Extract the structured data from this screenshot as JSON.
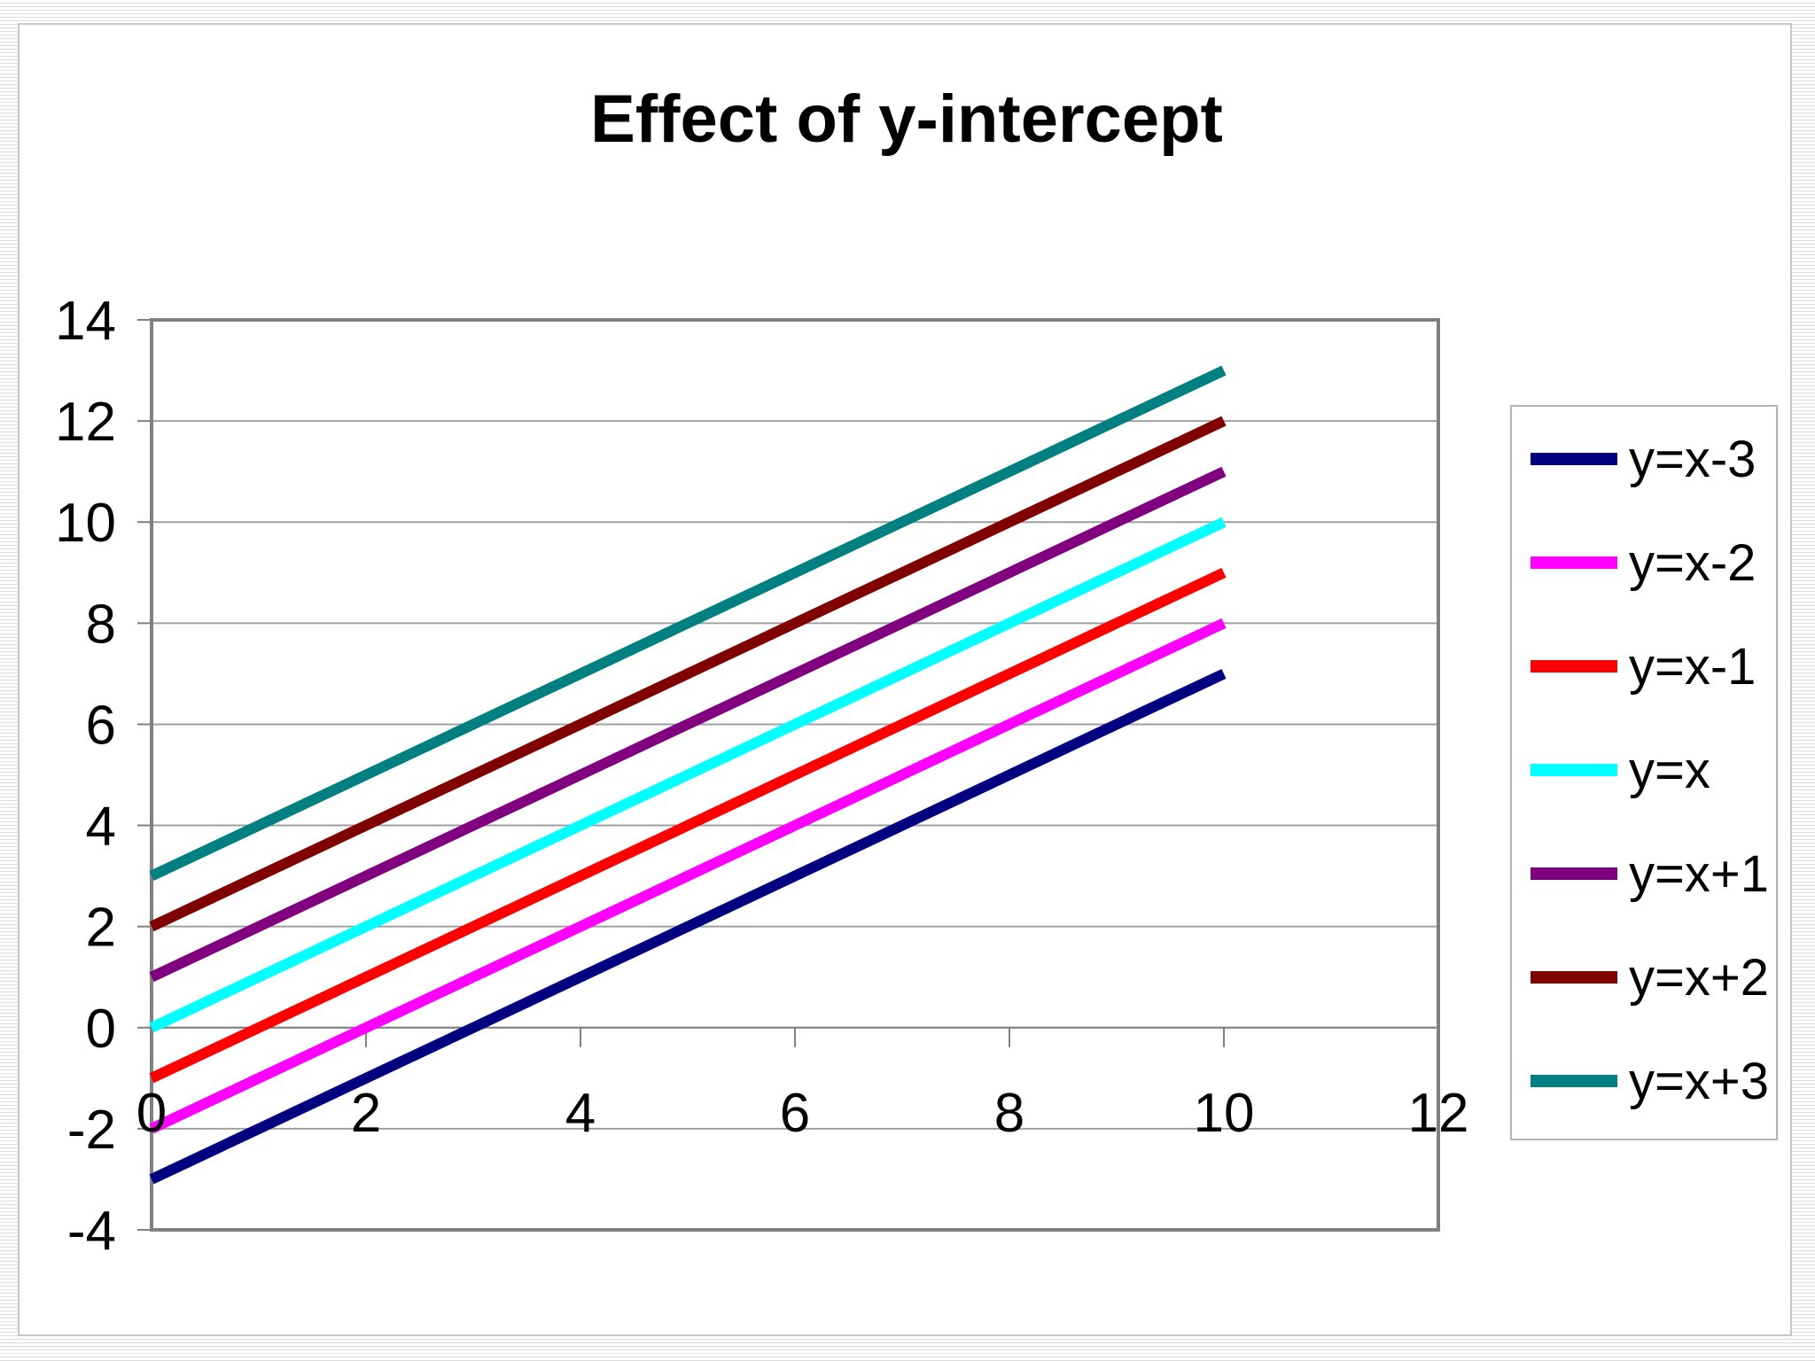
{
  "chart_data": {
    "type": "line",
    "title": "Effect of y-intercept",
    "xlabel": "",
    "ylabel": "",
    "xlim": [
      0,
      12
    ],
    "ylim": [
      -4,
      14
    ],
    "x_ticks": [
      0,
      2,
      4,
      6,
      8,
      10,
      12
    ],
    "y_ticks": [
      -4,
      -2,
      0,
      2,
      4,
      6,
      8,
      10,
      12,
      14
    ],
    "grid": "horizontal",
    "legend_position": "right",
    "x": [
      0,
      1,
      2,
      3,
      4,
      5,
      6,
      7,
      8,
      9,
      10
    ],
    "series": [
      {
        "name": "y=x-3",
        "color": "#000080",
        "values": [
          -3,
          -2,
          -1,
          0,
          1,
          2,
          3,
          4,
          5,
          6,
          7
        ]
      },
      {
        "name": "y=x-2",
        "color": "#FF00FF",
        "values": [
          -2,
          -1,
          0,
          1,
          2,
          3,
          4,
          5,
          6,
          7,
          8
        ]
      },
      {
        "name": "y=x-1",
        "color": "#FF0000",
        "values": [
          -1,
          0,
          1,
          2,
          3,
          4,
          5,
          6,
          7,
          8,
          9
        ]
      },
      {
        "name": "y=x",
        "color": "#00FFFF",
        "values": [
          0,
          1,
          2,
          3,
          4,
          5,
          6,
          7,
          8,
          9,
          10
        ]
      },
      {
        "name": "y=x+1",
        "color": "#800080",
        "values": [
          1,
          2,
          3,
          4,
          5,
          6,
          7,
          8,
          9,
          10,
          11
        ]
      },
      {
        "name": "y=x+2",
        "color": "#800000",
        "values": [
          2,
          3,
          4,
          5,
          6,
          7,
          8,
          9,
          10,
          11,
          12
        ]
      },
      {
        "name": "y=x+3",
        "color": "#008080",
        "values": [
          3,
          4,
          5,
          6,
          7,
          8,
          9,
          10,
          11,
          12,
          13
        ]
      }
    ]
  }
}
